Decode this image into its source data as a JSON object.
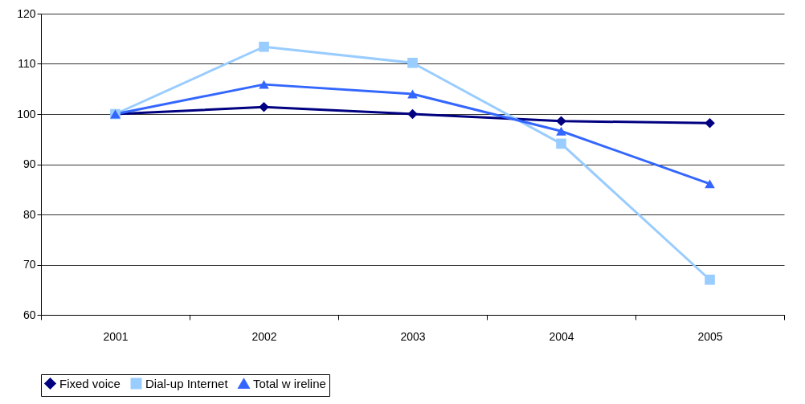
{
  "chart_data": {
    "type": "line",
    "categories": [
      "2001",
      "2002",
      "2003",
      "2004",
      "2005"
    ],
    "series": [
      {
        "name": "Fixed voice",
        "color": "#000080",
        "marker": "diamond",
        "values": [
          100,
          101.4,
          100,
          98.6,
          98.2
        ]
      },
      {
        "name": "Dial-up Internet",
        "color": "#99ccff",
        "marker": "square",
        "values": [
          100,
          113.4,
          110.2,
          94.1,
          67
        ]
      },
      {
        "name": "Total w ireline",
        "color": "#3366ff",
        "marker": "triangle",
        "values": [
          100,
          105.9,
          104,
          96.6,
          86.1
        ]
      }
    ],
    "ylim": [
      60,
      120
    ],
    "yticks": [
      60,
      70,
      80,
      90,
      100,
      110,
      120
    ],
    "grid": "y",
    "legend": "bottom",
    "line_style": "solid"
  }
}
